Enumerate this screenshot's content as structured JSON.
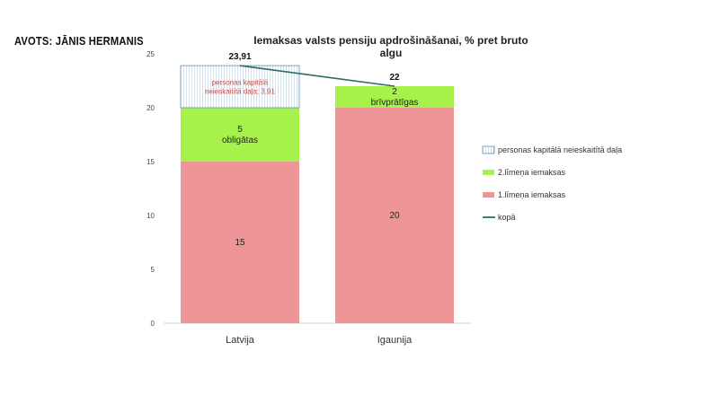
{
  "source": "AVOTS: JĀNIS HERMANIS",
  "chart_data": {
    "type": "bar",
    "stacked": true,
    "title": "Iemaksas valsts pensiju apdrošināšanai,  % pret bruto algu",
    "categories": [
      "Latvija",
      "Igaunija"
    ],
    "ylim": [
      0,
      25
    ],
    "yticks": [
      0,
      5,
      10,
      15,
      20,
      25
    ],
    "grid": false,
    "legend_position": "right",
    "series": [
      {
        "key": "first",
        "name": "1.līmeņa iemaksas",
        "values": [
          15,
          20
        ],
        "color": "#ee9597",
        "labels": [
          [
            "15"
          ],
          [
            "20"
          ]
        ]
      },
      {
        "key": "second",
        "name": "2.līmeņa iemaksas",
        "values": [
          5,
          2
        ],
        "color": "#a6f24a",
        "labels": [
          [
            "5",
            "obligātas"
          ],
          [
            "2",
            "brīvprātīgas"
          ]
        ]
      },
      {
        "key": "capital",
        "name": "personas kapitālā neieskaitītā daļa",
        "values": [
          3.91,
          0
        ],
        "color": "#5b8db8",
        "pattern": "hatch",
        "labels": [
          [
            "personas kapitālā",
            "neieskaitītā daļa; 3,91"
          ],
          []
        ]
      }
    ],
    "total": {
      "name": "kopā",
      "values": [
        23.91,
        22
      ],
      "labels": [
        "23,91",
        "22"
      ],
      "color": "#2e6b6b"
    }
  }
}
